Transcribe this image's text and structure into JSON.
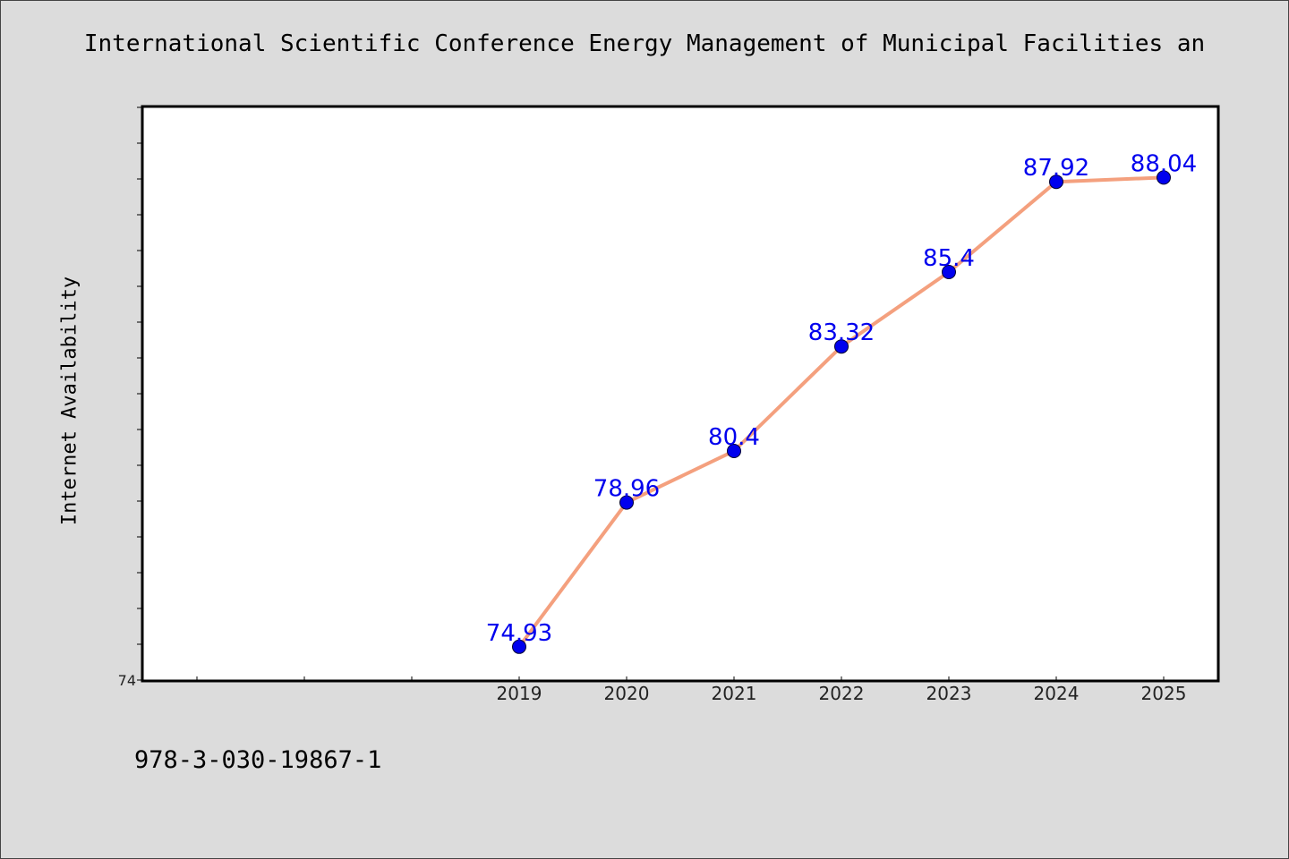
{
  "chart_data": {
    "type": "line",
    "title": "International Scientific Conference Energy Management of Municipal Facilities an",
    "ylabel": "Internet Availability",
    "xlabel": "",
    "x": [
      "2019",
      "2020",
      "2021",
      "2022",
      "2023",
      "2024",
      "2025"
    ],
    "series": [
      {
        "values": [
          74.93,
          78.96,
          80.4,
          83.32,
          85.4,
          87.92,
          88.04
        ],
        "labels": [
          "74.93",
          "78.96",
          "80.4",
          "83.32",
          "85.4",
          "87.92",
          "88.04"
        ]
      }
    ],
    "xlim": [
      2015.5,
      2025.5
    ],
    "ylim": [
      74,
      90
    ],
    "y_tick_labels": [
      "74"
    ],
    "grid": false,
    "colors": {
      "line": "#f4a07e",
      "marker": "#0000ee",
      "label": "#0000ee"
    }
  },
  "footer": {
    "code": "978-3-030-19867-1"
  }
}
